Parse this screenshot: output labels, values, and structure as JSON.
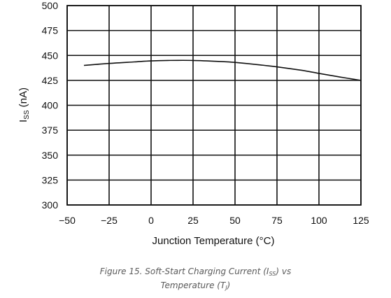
{
  "chart_data": {
    "type": "line",
    "xlabel": "Junction Temperature (°C)",
    "ylabel": {
      "main": "I",
      "sub": "SS",
      "rest": " (nA)"
    },
    "x_ticks": [
      -50,
      -25,
      0,
      25,
      50,
      75,
      100,
      125
    ],
    "x_tick_labels": [
      "−50",
      "−25",
      "0",
      "25",
      "50",
      "75",
      "100",
      "125"
    ],
    "y_ticks": [
      300,
      325,
      350,
      375,
      400,
      425,
      450,
      475,
      500
    ],
    "xlim": [
      -50,
      125
    ],
    "ylim": [
      300,
      500
    ],
    "grid": true,
    "series": [
      {
        "x": [
          -40,
          -25,
          -10,
          0,
          10,
          25,
          40,
          50,
          65,
          75,
          90,
          100,
          112,
          125
        ],
        "y": [
          440,
          442,
          443.5,
          444.5,
          445,
          445,
          444,
          443,
          440.5,
          438.5,
          435,
          432,
          428.5,
          425
        ]
      }
    ]
  },
  "caption": {
    "line1_prefix": "Figure 15. Soft-Start Charging Current (I",
    "line1_sub": "SS",
    "line1_suffix": ") vs",
    "line2_prefix": "Temperature (T",
    "line2_sub": "J",
    "line2_suffix": ")"
  }
}
